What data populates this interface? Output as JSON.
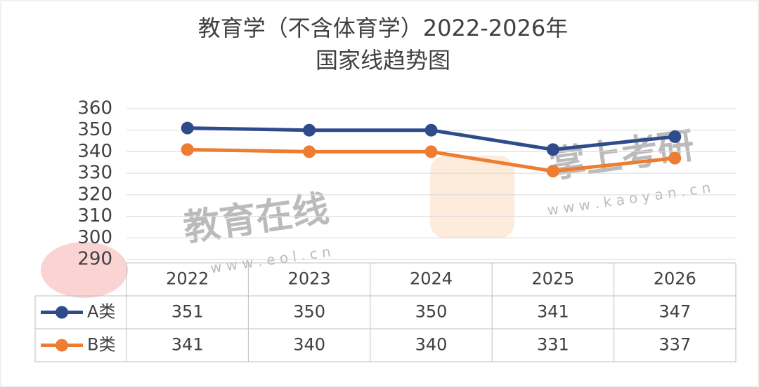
{
  "chart_data": {
    "type": "line",
    "title": [
      "教育学（不含体育学）2022-2026年",
      "国家线趋势图"
    ],
    "categories": [
      "2022",
      "2023",
      "2024",
      "2025",
      "2026"
    ],
    "series": [
      {
        "name": "A类",
        "color": "#2f4b8c",
        "values": [
          351,
          350,
          350,
          341,
          347
        ]
      },
      {
        "name": "B类",
        "color": "#ed7d31",
        "values": [
          341,
          340,
          340,
          331,
          337
        ]
      }
    ],
    "ylim": [
      290,
      360
    ],
    "yticks": [
      290,
      300,
      310,
      320,
      330,
      340,
      350,
      360
    ],
    "grid": true,
    "data_table": true,
    "watermarks": [
      "教育在线",
      "w w w . e o l . c n",
      "掌上考研",
      "w w w . k a o y a n . c n"
    ]
  }
}
